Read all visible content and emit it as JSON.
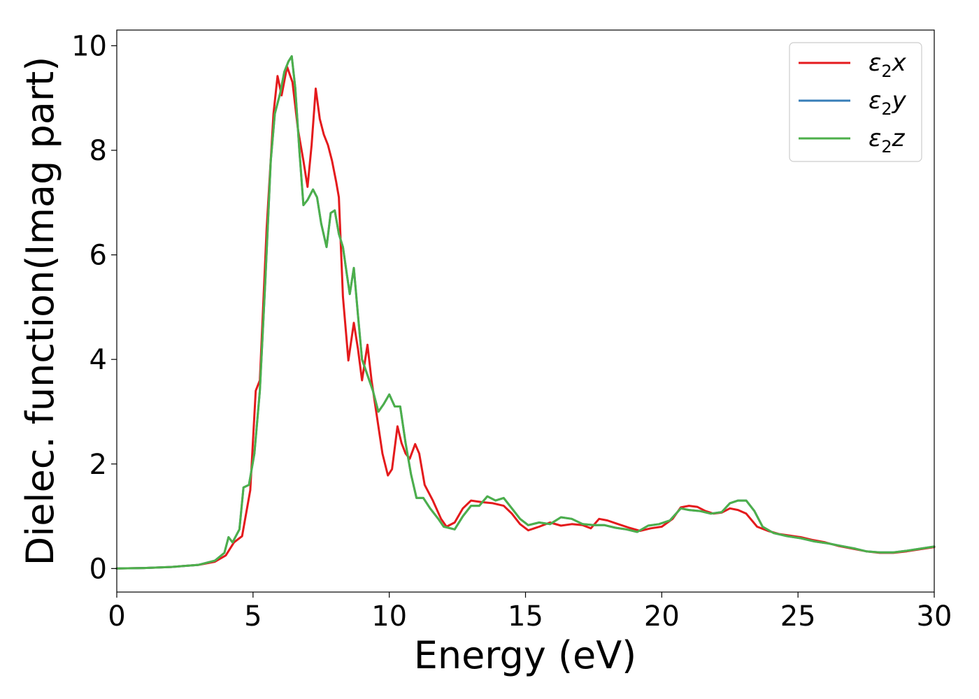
{
  "chart_data": {
    "type": "line",
    "xlabel": "Energy (eV)",
    "ylabel": "Dielec. function(Imag part)",
    "xlim": [
      0,
      30
    ],
    "ylim": [
      -0.45,
      10.3
    ],
    "xticks": [
      0,
      5,
      10,
      15,
      20,
      25,
      30
    ],
    "yticks": [
      0,
      2,
      4,
      6,
      8,
      10
    ],
    "grid": false,
    "legend_position": "top-right",
    "series": [
      {
        "name": "ε₂x",
        "label_base": "ε",
        "label_sub": "2",
        "label_suffix": "x",
        "color": "#e41a1c",
        "points": [
          [
            0,
            0
          ],
          [
            1,
            0.01
          ],
          [
            2,
            0.03
          ],
          [
            3,
            0.07
          ],
          [
            3.6,
            0.13
          ],
          [
            4.0,
            0.25
          ],
          [
            4.3,
            0.5
          ],
          [
            4.6,
            0.62
          ],
          [
            4.9,
            1.5
          ],
          [
            5.1,
            3.4
          ],
          [
            5.25,
            3.6
          ],
          [
            5.5,
            6.5
          ],
          [
            5.75,
            8.7
          ],
          [
            5.9,
            9.42
          ],
          [
            6.05,
            9.05
          ],
          [
            6.25,
            9.6
          ],
          [
            6.45,
            9.3
          ],
          [
            6.65,
            8.4
          ],
          [
            6.85,
            7.8
          ],
          [
            7.0,
            7.3
          ],
          [
            7.15,
            8.1
          ],
          [
            7.3,
            9.18
          ],
          [
            7.45,
            8.6
          ],
          [
            7.6,
            8.3
          ],
          [
            7.75,
            8.1
          ],
          [
            7.9,
            7.8
          ],
          [
            8.05,
            7.4
          ],
          [
            8.15,
            7.1
          ],
          [
            8.3,
            5.2
          ],
          [
            8.5,
            3.98
          ],
          [
            8.7,
            4.7
          ],
          [
            8.85,
            4.2
          ],
          [
            9.0,
            3.6
          ],
          [
            9.2,
            4.28
          ],
          [
            9.35,
            3.6
          ],
          [
            9.55,
            2.9
          ],
          [
            9.75,
            2.2
          ],
          [
            9.95,
            1.78
          ],
          [
            10.1,
            1.9
          ],
          [
            10.3,
            2.72
          ],
          [
            10.45,
            2.4
          ],
          [
            10.6,
            2.2
          ],
          [
            10.75,
            2.1
          ],
          [
            10.95,
            2.38
          ],
          [
            11.1,
            2.2
          ],
          [
            11.3,
            1.6
          ],
          [
            11.6,
            1.3
          ],
          [
            11.9,
            0.95
          ],
          [
            12.1,
            0.8
          ],
          [
            12.4,
            0.88
          ],
          [
            12.7,
            1.15
          ],
          [
            13.0,
            1.3
          ],
          [
            13.4,
            1.27
          ],
          [
            13.8,
            1.25
          ],
          [
            14.2,
            1.2
          ],
          [
            14.5,
            1.05
          ],
          [
            14.8,
            0.85
          ],
          [
            15.1,
            0.73
          ],
          [
            15.5,
            0.8
          ],
          [
            15.9,
            0.88
          ],
          [
            16.3,
            0.82
          ],
          [
            16.7,
            0.85
          ],
          [
            17.1,
            0.83
          ],
          [
            17.4,
            0.77
          ],
          [
            17.7,
            0.95
          ],
          [
            18.0,
            0.92
          ],
          [
            18.4,
            0.85
          ],
          [
            18.8,
            0.78
          ],
          [
            19.2,
            0.72
          ],
          [
            19.6,
            0.77
          ],
          [
            20.0,
            0.8
          ],
          [
            20.4,
            0.95
          ],
          [
            20.7,
            1.17
          ],
          [
            21.0,
            1.2
          ],
          [
            21.3,
            1.18
          ],
          [
            21.6,
            1.1
          ],
          [
            21.9,
            1.05
          ],
          [
            22.2,
            1.07
          ],
          [
            22.5,
            1.15
          ],
          [
            22.8,
            1.12
          ],
          [
            23.1,
            1.05
          ],
          [
            23.5,
            0.8
          ],
          [
            23.9,
            0.72
          ],
          [
            24.3,
            0.66
          ],
          [
            24.7,
            0.63
          ],
          [
            25.1,
            0.6
          ],
          [
            25.5,
            0.55
          ],
          [
            26.0,
            0.5
          ],
          [
            26.5,
            0.43
          ],
          [
            27.0,
            0.38
          ],
          [
            27.5,
            0.33
          ],
          [
            28.0,
            0.3
          ],
          [
            28.5,
            0.3
          ],
          [
            29.0,
            0.33
          ],
          [
            29.5,
            0.37
          ],
          [
            30,
            0.41
          ]
        ]
      },
      {
        "name": "ε₂y",
        "label_base": "ε",
        "label_sub": "2",
        "label_suffix": "y",
        "color": "#377eb8",
        "points": [
          [
            0,
            0
          ],
          [
            1,
            0.01
          ],
          [
            2,
            0.03
          ],
          [
            3,
            0.07
          ],
          [
            3.6,
            0.15
          ],
          [
            3.95,
            0.3
          ],
          [
            4.1,
            0.6
          ],
          [
            4.25,
            0.5
          ],
          [
            4.5,
            0.75
          ],
          [
            4.65,
            1.55
          ],
          [
            4.85,
            1.6
          ],
          [
            5.05,
            2.2
          ],
          [
            5.25,
            3.4
          ],
          [
            5.45,
            5.5
          ],
          [
            5.65,
            7.8
          ],
          [
            5.8,
            8.7
          ],
          [
            6.0,
            9.1
          ],
          [
            6.15,
            9.5
          ],
          [
            6.3,
            9.7
          ],
          [
            6.42,
            9.8
          ],
          [
            6.55,
            9.2
          ],
          [
            6.7,
            8.0
          ],
          [
            6.85,
            6.95
          ],
          [
            7.0,
            7.05
          ],
          [
            7.2,
            7.25
          ],
          [
            7.35,
            7.1
          ],
          [
            7.5,
            6.6
          ],
          [
            7.7,
            6.15
          ],
          [
            7.85,
            6.8
          ],
          [
            8.0,
            6.85
          ],
          [
            8.15,
            6.4
          ],
          [
            8.3,
            6.15
          ],
          [
            8.45,
            5.6
          ],
          [
            8.55,
            5.25
          ],
          [
            8.7,
            5.75
          ],
          [
            8.85,
            4.85
          ],
          [
            9.0,
            4.0
          ],
          [
            9.2,
            3.7
          ],
          [
            9.4,
            3.4
          ],
          [
            9.6,
            3.0
          ],
          [
            9.8,
            3.15
          ],
          [
            10.0,
            3.33
          ],
          [
            10.2,
            3.1
          ],
          [
            10.4,
            3.1
          ],
          [
            10.6,
            2.4
          ],
          [
            10.8,
            1.8
          ],
          [
            11.0,
            1.35
          ],
          [
            11.25,
            1.35
          ],
          [
            11.5,
            1.15
          ],
          [
            11.8,
            0.95
          ],
          [
            12.0,
            0.8
          ],
          [
            12.4,
            0.75
          ],
          [
            12.7,
            1.0
          ],
          [
            13.0,
            1.2
          ],
          [
            13.3,
            1.2
          ],
          [
            13.6,
            1.38
          ],
          [
            13.9,
            1.3
          ],
          [
            14.2,
            1.35
          ],
          [
            14.5,
            1.15
          ],
          [
            14.8,
            0.95
          ],
          [
            15.1,
            0.83
          ],
          [
            15.5,
            0.88
          ],
          [
            15.9,
            0.85
          ],
          [
            16.3,
            0.98
          ],
          [
            16.7,
            0.95
          ],
          [
            17.1,
            0.85
          ],
          [
            17.5,
            0.83
          ],
          [
            17.9,
            0.83
          ],
          [
            18.3,
            0.78
          ],
          [
            18.7,
            0.75
          ],
          [
            19.1,
            0.7
          ],
          [
            19.5,
            0.82
          ],
          [
            19.9,
            0.85
          ],
          [
            20.3,
            0.92
          ],
          [
            20.7,
            1.15
          ],
          [
            21.0,
            1.12
          ],
          [
            21.4,
            1.1
          ],
          [
            21.8,
            1.05
          ],
          [
            22.2,
            1.08
          ],
          [
            22.5,
            1.25
          ],
          [
            22.8,
            1.3
          ],
          [
            23.1,
            1.3
          ],
          [
            23.4,
            1.1
          ],
          [
            23.7,
            0.8
          ],
          [
            24.1,
            0.68
          ],
          [
            24.6,
            0.62
          ],
          [
            25.1,
            0.58
          ],
          [
            25.6,
            0.52
          ],
          [
            26.1,
            0.48
          ],
          [
            26.6,
            0.43
          ],
          [
            27.1,
            0.38
          ],
          [
            27.5,
            0.33
          ],
          [
            28.0,
            0.31
          ],
          [
            28.5,
            0.31
          ],
          [
            29.0,
            0.34
          ],
          [
            29.5,
            0.38
          ],
          [
            30,
            0.42
          ]
        ]
      },
      {
        "name": "ε₂z",
        "label_base": "ε",
        "label_sub": "2",
        "label_suffix": "z",
        "color": "#4daf4a",
        "points": [
          [
            0,
            0
          ],
          [
            1,
            0.01
          ],
          [
            2,
            0.03
          ],
          [
            3,
            0.07
          ],
          [
            3.6,
            0.15
          ],
          [
            3.95,
            0.3
          ],
          [
            4.1,
            0.6
          ],
          [
            4.25,
            0.5
          ],
          [
            4.5,
            0.75
          ],
          [
            4.65,
            1.55
          ],
          [
            4.85,
            1.6
          ],
          [
            5.05,
            2.2
          ],
          [
            5.25,
            3.4
          ],
          [
            5.45,
            5.5
          ],
          [
            5.65,
            7.8
          ],
          [
            5.8,
            8.7
          ],
          [
            6.0,
            9.1
          ],
          [
            6.15,
            9.5
          ],
          [
            6.3,
            9.7
          ],
          [
            6.42,
            9.8
          ],
          [
            6.55,
            9.2
          ],
          [
            6.7,
            8.0
          ],
          [
            6.85,
            6.95
          ],
          [
            7.0,
            7.05
          ],
          [
            7.2,
            7.25
          ],
          [
            7.35,
            7.1
          ],
          [
            7.5,
            6.6
          ],
          [
            7.7,
            6.15
          ],
          [
            7.85,
            6.8
          ],
          [
            8.0,
            6.85
          ],
          [
            8.15,
            6.4
          ],
          [
            8.3,
            6.15
          ],
          [
            8.45,
            5.6
          ],
          [
            8.55,
            5.25
          ],
          [
            8.7,
            5.75
          ],
          [
            8.85,
            4.85
          ],
          [
            9.0,
            4.0
          ],
          [
            9.2,
            3.7
          ],
          [
            9.4,
            3.4
          ],
          [
            9.6,
            3.0
          ],
          [
            9.8,
            3.15
          ],
          [
            10.0,
            3.33
          ],
          [
            10.2,
            3.1
          ],
          [
            10.4,
            3.1
          ],
          [
            10.6,
            2.4
          ],
          [
            10.8,
            1.8
          ],
          [
            11.0,
            1.35
          ],
          [
            11.25,
            1.35
          ],
          [
            11.5,
            1.15
          ],
          [
            11.8,
            0.95
          ],
          [
            12.0,
            0.8
          ],
          [
            12.4,
            0.75
          ],
          [
            12.7,
            1.0
          ],
          [
            13.0,
            1.2
          ],
          [
            13.3,
            1.2
          ],
          [
            13.6,
            1.38
          ],
          [
            13.9,
            1.3
          ],
          [
            14.2,
            1.35
          ],
          [
            14.5,
            1.15
          ],
          [
            14.8,
            0.95
          ],
          [
            15.1,
            0.83
          ],
          [
            15.5,
            0.88
          ],
          [
            15.9,
            0.85
          ],
          [
            16.3,
            0.98
          ],
          [
            16.7,
            0.95
          ],
          [
            17.1,
            0.85
          ],
          [
            17.5,
            0.83
          ],
          [
            17.9,
            0.83
          ],
          [
            18.3,
            0.78
          ],
          [
            18.7,
            0.75
          ],
          [
            19.1,
            0.7
          ],
          [
            19.5,
            0.82
          ],
          [
            19.9,
            0.85
          ],
          [
            20.3,
            0.92
          ],
          [
            20.7,
            1.15
          ],
          [
            21.0,
            1.12
          ],
          [
            21.4,
            1.1
          ],
          [
            21.8,
            1.05
          ],
          [
            22.2,
            1.08
          ],
          [
            22.5,
            1.25
          ],
          [
            22.8,
            1.3
          ],
          [
            23.1,
            1.3
          ],
          [
            23.4,
            1.1
          ],
          [
            23.7,
            0.8
          ],
          [
            24.1,
            0.68
          ],
          [
            24.6,
            0.62
          ],
          [
            25.1,
            0.58
          ],
          [
            25.6,
            0.52
          ],
          [
            26.1,
            0.48
          ],
          [
            26.6,
            0.43
          ],
          [
            27.1,
            0.38
          ],
          [
            27.5,
            0.33
          ],
          [
            28.0,
            0.31
          ],
          [
            28.5,
            0.31
          ],
          [
            29.0,
            0.34
          ],
          [
            29.5,
            0.38
          ],
          [
            30,
            0.42
          ]
        ]
      }
    ]
  }
}
